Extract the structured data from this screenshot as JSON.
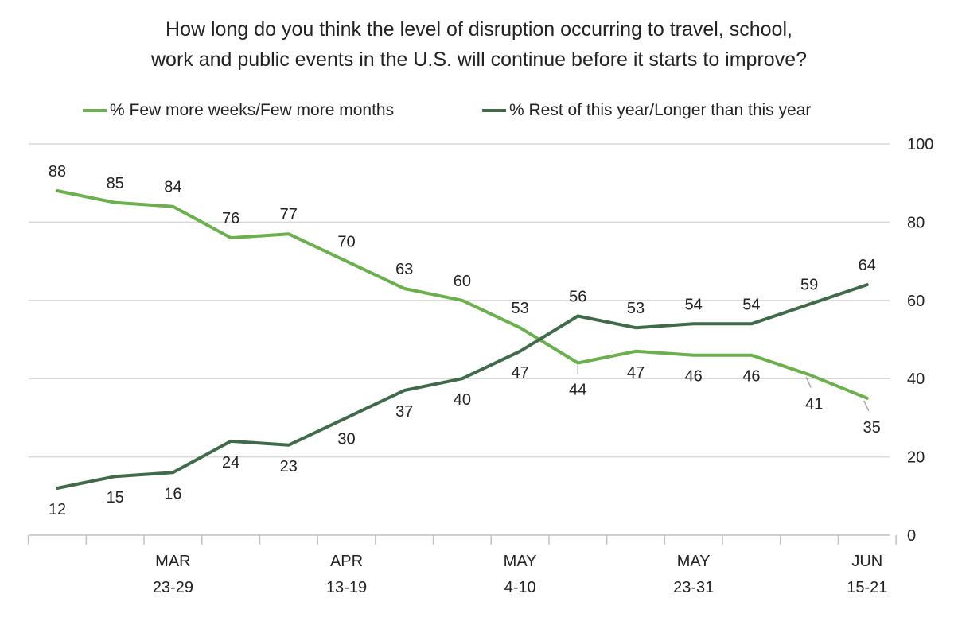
{
  "title": {
    "line1": "How long do you think the level of disruption occurring to travel, school,",
    "line2": "work and public events in the U.S. will continue before it starts to improve?"
  },
  "colors": {
    "series_light": "#6ab04c",
    "series_dark": "#3f6b4a",
    "grid": "#d9d9d9",
    "axis": "#bfbfbf",
    "text": "#222222"
  },
  "chart_data": {
    "type": "line",
    "title": "How long do you think the level of disruption occurring to travel, school, work and public events in the U.S. will continue before it starts to improve?",
    "xlabel": "",
    "ylabel": "",
    "ylim": [
      0,
      100
    ],
    "yticks": [
      0,
      20,
      40,
      60,
      80,
      100
    ],
    "y_axis_side": "right",
    "grid": true,
    "legend_position": "top",
    "x_tick_labels": [
      {
        "index": 2,
        "line1": "MAR",
        "line2": "23-29"
      },
      {
        "index": 5,
        "line1": "APR",
        "line2": "13-19"
      },
      {
        "index": 8,
        "line1": "MAY",
        "line2": "4-10"
      },
      {
        "index": 11,
        "line1": "MAY",
        "line2": "23-31"
      },
      {
        "index": 14,
        "line1": "JUN",
        "line2": "15-21"
      }
    ],
    "series": [
      {
        "name": "% Few more weeks/Few more months",
        "color": "#6ab04c",
        "values": [
          88,
          85,
          84,
          76,
          77,
          70,
          63,
          60,
          53,
          44,
          47,
          46,
          46,
          41,
          35
        ]
      },
      {
        "name": "% Rest of this year/Longer than this year",
        "color": "#3f6b4a",
        "values": [
          12,
          15,
          16,
          24,
          23,
          30,
          37,
          40,
          47,
          56,
          53,
          54,
          54,
          59,
          64
        ]
      }
    ]
  }
}
